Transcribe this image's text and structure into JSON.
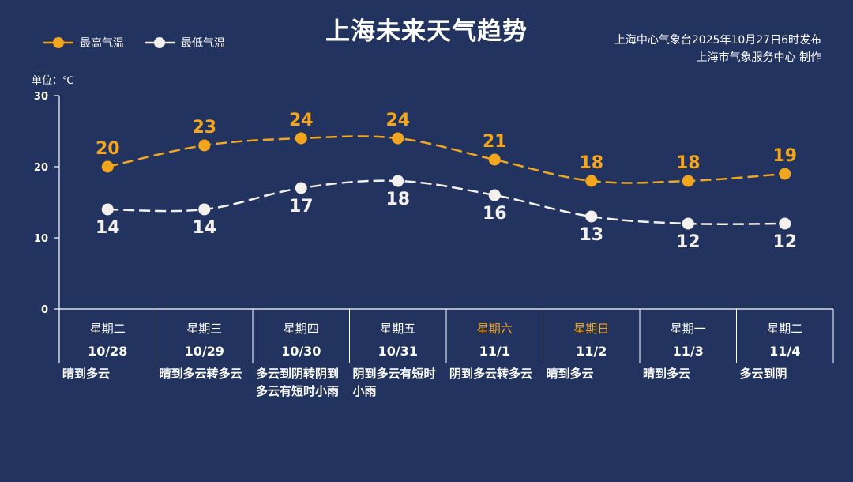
{
  "title": "上海未来天气趋势",
  "source": {
    "line1": "上海中心气象台2025年10月27日6时发布",
    "line2": "上海市气象服务中心 制作"
  },
  "unit_label": "单位：℃",
  "colors": {
    "background": "#22335f",
    "high": "#f2a51f",
    "low": "#f3f0ee",
    "axis": "#ffffff"
  },
  "days": [
    {
      "weekday": "星期二",
      "date": "10/28",
      "weather": "晴到多云",
      "weekend": false
    },
    {
      "weekday": "星期三",
      "date": "10/29",
      "weather": "晴到多云转多云",
      "weekend": false
    },
    {
      "weekday": "星期四",
      "date": "10/30",
      "weather": "多云到阴转阴到多云有短时小雨",
      "weekend": false
    },
    {
      "weekday": "星期五",
      "date": "10/31",
      "weather": "阴到多云有短时小雨",
      "weekend": false
    },
    {
      "weekday": "星期六",
      "date": "11/1",
      "weather": "阴到多云转多云",
      "weekend": true
    },
    {
      "weekday": "星期日",
      "date": "11/2",
      "weather": "晴到多云",
      "weekend": true
    },
    {
      "weekday": "星期一",
      "date": "11/3",
      "weather": "晴到多云",
      "weekend": false
    },
    {
      "weekday": "星期二",
      "date": "11/4",
      "weather": "多云到阴",
      "weekend": false
    }
  ],
  "chart_data": {
    "type": "line",
    "title": "上海未来天气趋势",
    "ylabel": "单位：℃",
    "ylim": [
      0,
      30
    ],
    "yticks": [
      0,
      10,
      20,
      30
    ],
    "categories": [
      "10/28",
      "10/29",
      "10/30",
      "10/31",
      "11/1",
      "11/2",
      "11/3",
      "11/4"
    ],
    "legend_position": "top-left",
    "line_style": "dashed",
    "series": [
      {
        "name": "最高气温",
        "color": "#f2a51f",
        "values": [
          20,
          23,
          24,
          24,
          21,
          18,
          18,
          19
        ]
      },
      {
        "name": "最低气温",
        "color": "#f3f0ee",
        "values": [
          14,
          14,
          17,
          18,
          16,
          13,
          12,
          12
        ]
      }
    ]
  }
}
